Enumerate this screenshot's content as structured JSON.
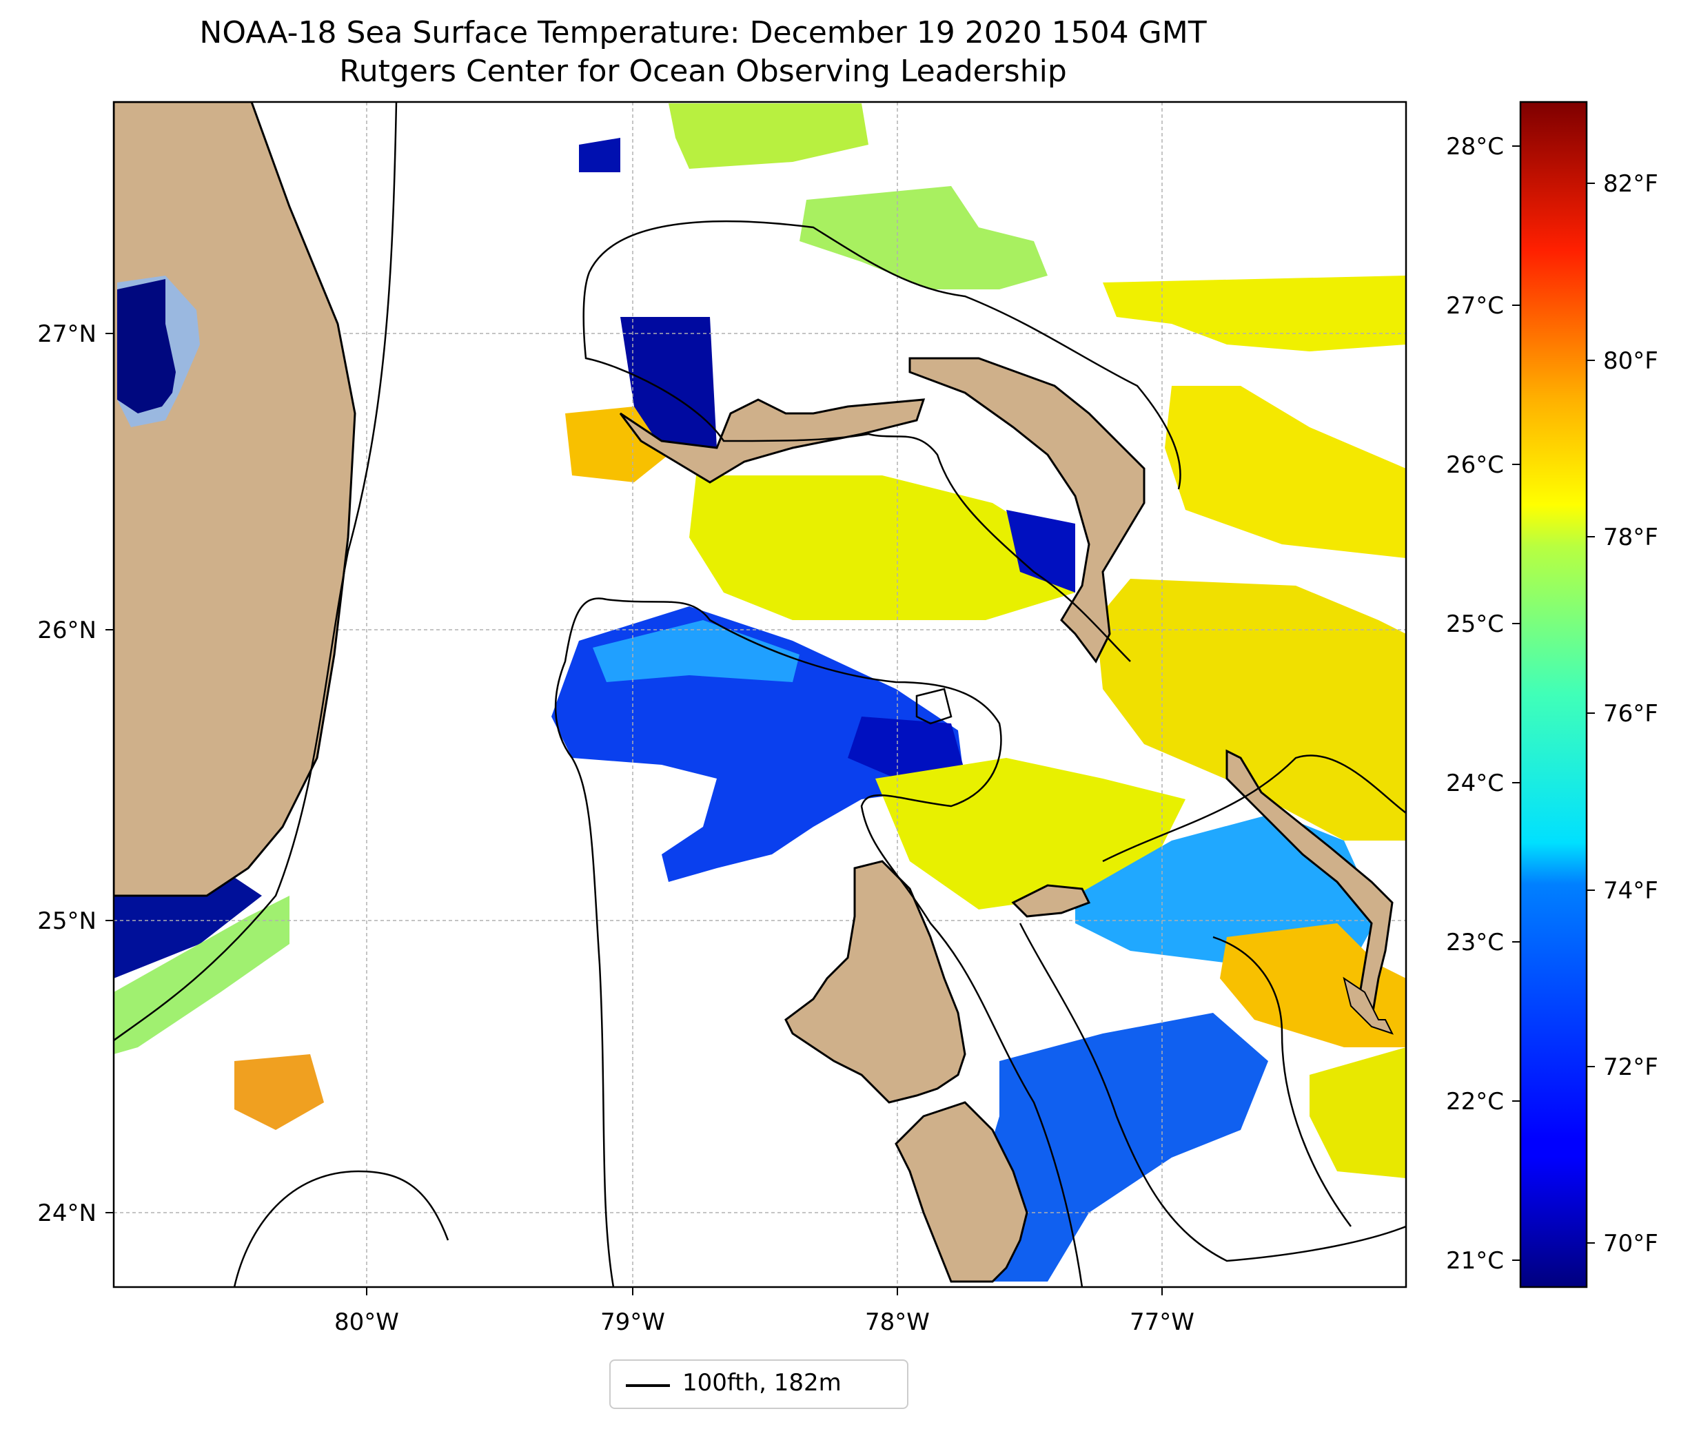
{
  "title": "NOAA-18 Sea Surface Temperature: December 19 2020 1504 GMT",
  "subtitle": "Rutgers Center for Ocean Observing Leadership",
  "map": {
    "lon_range": [
      -80.97,
      -76.1
    ],
    "lat_range": [
      23.75,
      27.8
    ],
    "lon_ticks": [
      "80°W",
      "79°W",
      "78°W",
      "77°W"
    ],
    "lat_ticks": [
      "27°N",
      "26°N",
      "25°N",
      "24°N"
    ],
    "gridlines": true,
    "land_color": "#cfb08a",
    "lake_color": "#9ab8e0",
    "legend_label": "100fth, 182m"
  },
  "colorbar": {
    "colormap": "jet",
    "celsius_ticks": [
      "28°C",
      "27°C",
      "26°C",
      "25°C",
      "24°C",
      "23°C",
      "22°C",
      "21°C"
    ],
    "fahrenheit_ticks": [
      "82°F",
      "80°F",
      "78°F",
      "76°F",
      "74°F",
      "72°F",
      "70°F"
    ],
    "range_f": [
      69.3,
      83.1
    ]
  }
}
